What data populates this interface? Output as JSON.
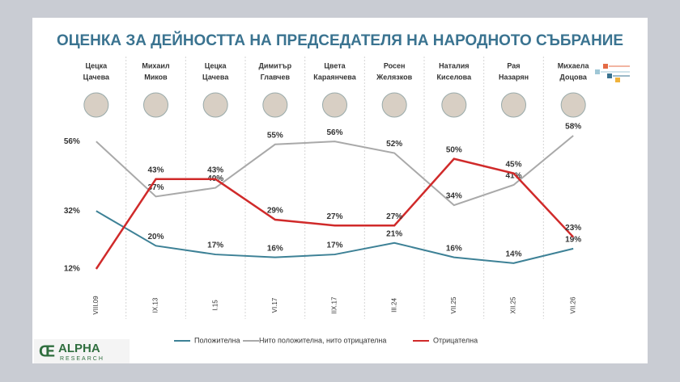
{
  "chart_data": {
    "type": "line",
    "title": "ОЦЕНКА ЗА ДЕЙНОСТТА НА ПРЕДСЕДАТЕЛЯ НА НАРОДНОТО СЪБРАНИЕ",
    "categories": [
      "VIII.09",
      "IX.13",
      "I.15",
      "VI.17",
      "IIX.17",
      "III.24",
      "VII.25",
      "XII.25",
      "VII.26"
    ],
    "column_labels": [
      [
        "Цецка",
        "Цачева"
      ],
      [
        "Михаил",
        "Миков"
      ],
      [
        "Цецка",
        "Цачева"
      ],
      [
        "Димитър",
        "Главчев"
      ],
      [
        "Цвета",
        "Караянчева"
      ],
      [
        "Росен",
        "Желязков"
      ],
      [
        "Наталия",
        "Киселова"
      ],
      [
        "Рая",
        "Назарян"
      ],
      [
        "Михаела",
        "Доцова"
      ]
    ],
    "series": [
      {
        "name": "Положителна",
        "color": "#3d8196",
        "values": [
          32,
          20,
          17,
          16,
          17,
          21,
          16,
          14,
          19
        ],
        "value_labels": [
          "32%",
          "20%",
          "17%",
          "16%",
          "17%",
          "21%",
          "16%",
          "14%",
          "19%"
        ]
      },
      {
        "name": "Нито положителна, нито отрицателна",
        "color": "#a9a9a9",
        "values": [
          56,
          37,
          40,
          55,
          56,
          52,
          34,
          41,
          58
        ],
        "value_labels": [
          "56%",
          "37%",
          "40%",
          "55%",
          "56%",
          "52%",
          "34%",
          "41%",
          "58%"
        ]
      },
      {
        "name": "Отрицателна",
        "color": "#d02a2a",
        "values": [
          12,
          43,
          43,
          29,
          27,
          27,
          50,
          45,
          23
        ],
        "value_labels": [
          "12%",
          "43%",
          "43%",
          "29%",
          "27%",
          "27%",
          "50%",
          "45%",
          "23%"
        ]
      }
    ]
  },
  "logo": {
    "name": "ALPHA",
    "sub": "RESEARCH"
  }
}
